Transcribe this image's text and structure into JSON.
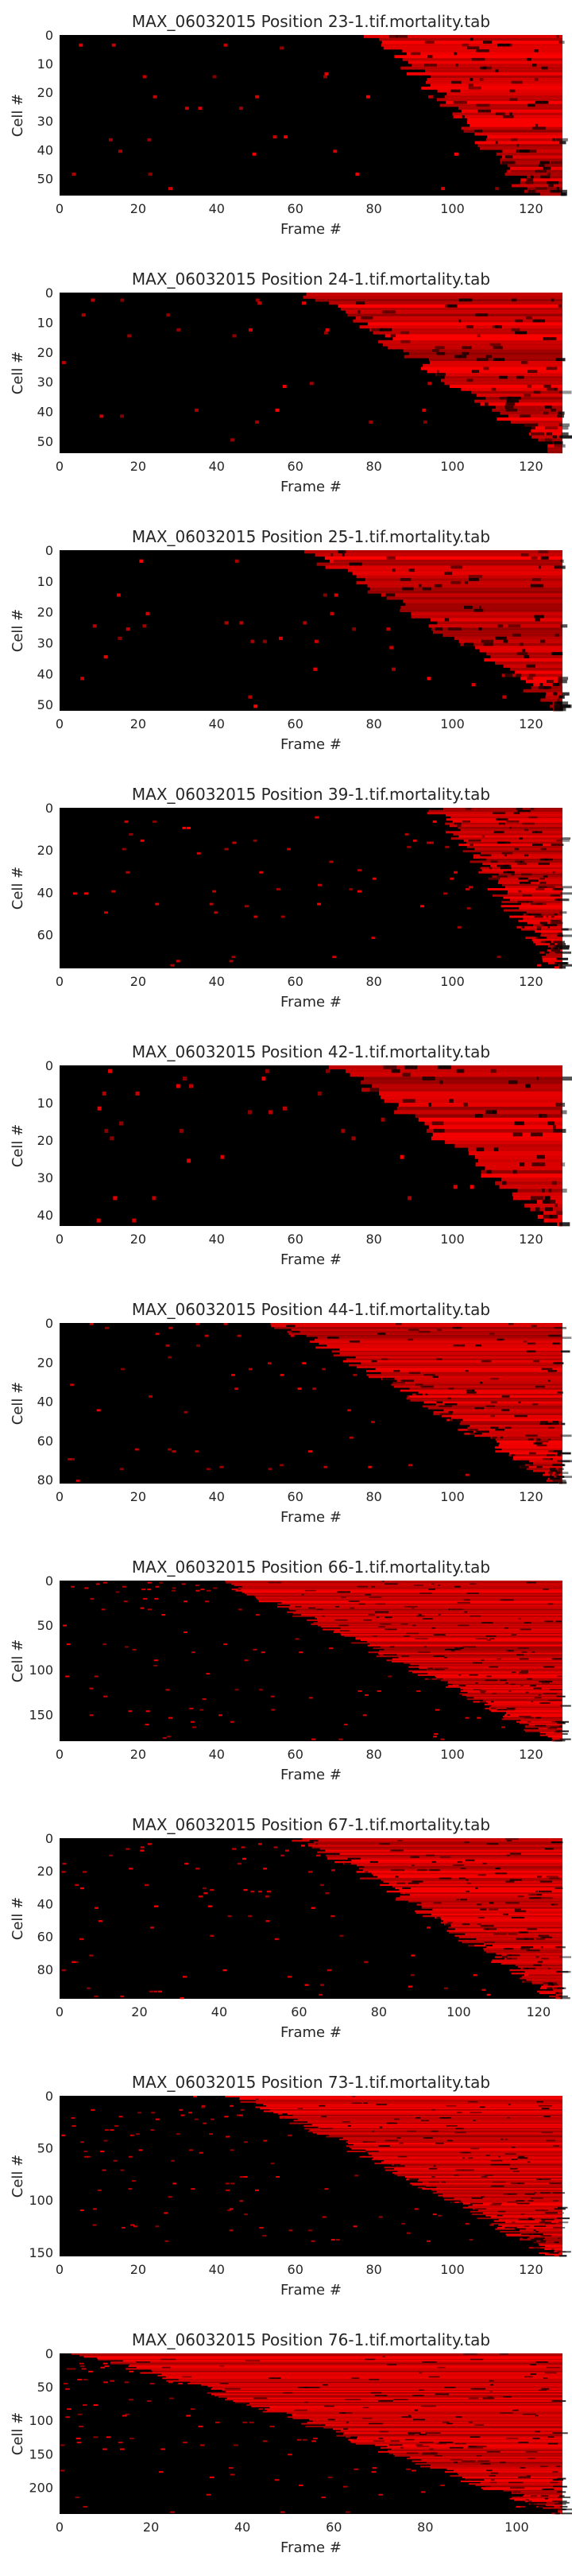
{
  "chart_data": [
    {
      "type": "heatmap",
      "title": "MAX_06032015 Position 23-1.tif.mortality.tab",
      "xlabel": "Frame #",
      "ylabel": "Cell #",
      "x_range": [
        0,
        128
      ],
      "y_range": [
        0,
        56
      ],
      "x_ticks": [
        0,
        20,
        40,
        60,
        80,
        100,
        120
      ],
      "y_ticks": [
        0,
        10,
        20,
        30,
        40,
        50
      ],
      "colormap": [
        "#000000",
        "#ff0000"
      ],
      "grid": false,
      "onset_frames": [
        80,
        120
      ]
    },
    {
      "type": "heatmap",
      "title": "MAX_06032015 Position 24-1.tif.mortality.tab",
      "xlabel": "Frame #",
      "ylabel": "Cell #",
      "x_range": [
        0,
        128
      ],
      "y_range": [
        0,
        54
      ],
      "x_ticks": [
        0,
        20,
        40,
        60,
        80,
        100,
        120
      ],
      "y_ticks": [
        0,
        10,
        20,
        30,
        40,
        50
      ],
      "colormap": [
        "#000000",
        "#ff0000"
      ],
      "grid": false,
      "onset_frames": [
        62,
        126
      ]
    },
    {
      "type": "heatmap",
      "title": "MAX_06032015 Position 25-1.tif.mortality.tab",
      "xlabel": "Frame #",
      "ylabel": "Cell #",
      "x_range": [
        0,
        128
      ],
      "y_range": [
        0,
        52
      ],
      "x_ticks": [
        0,
        20,
        40,
        60,
        80,
        100,
        120
      ],
      "y_ticks": [
        0,
        10,
        20,
        30,
        40,
        50
      ],
      "colormap": [
        "#000000",
        "#ff0000"
      ],
      "grid": false,
      "onset_frames": [
        61,
        128
      ]
    },
    {
      "type": "heatmap",
      "title": "MAX_06032015 Position 39-1.tif.mortality.tab",
      "xlabel": "Frame #",
      "ylabel": "Cell #",
      "x_range": [
        0,
        128
      ],
      "y_range": [
        0,
        76
      ],
      "x_ticks": [
        0,
        20,
        40,
        60,
        80,
        100,
        120
      ],
      "y_ticks": [
        0,
        20,
        40,
        60
      ],
      "colormap": [
        "#000000",
        "#ff0000"
      ],
      "grid": false,
      "onset_frames": [
        95,
        126
      ]
    },
    {
      "type": "heatmap",
      "title": "MAX_06032015 Position 42-1.tif.mortality.tab",
      "xlabel": "Frame #",
      "ylabel": "Cell #",
      "x_range": [
        0,
        128
      ],
      "y_range": [
        0,
        43
      ],
      "x_ticks": [
        0,
        20,
        40,
        60,
        80,
        100,
        120
      ],
      "y_ticks": [
        0,
        10,
        20,
        30,
        40
      ],
      "colormap": [
        "#000000",
        "#ff0000"
      ],
      "grid": false,
      "onset_frames": [
        70,
        126
      ]
    },
    {
      "type": "heatmap",
      "title": "MAX_06032015 Position 44-1.tif.mortality.tab",
      "xlabel": "Frame #",
      "ylabel": "Cell #",
      "x_range": [
        0,
        128
      ],
      "y_range": [
        0,
        82
      ],
      "x_ticks": [
        0,
        20,
        40,
        60,
        80,
        100,
        120
      ],
      "y_ticks": [
        0,
        20,
        40,
        60,
        80
      ],
      "colormap": [
        "#000000",
        "#ff0000"
      ],
      "grid": false,
      "onset_frames": [
        55,
        126
      ]
    },
    {
      "type": "heatmap",
      "title": "MAX_06032015 Position 66-1.tif.mortality.tab",
      "xlabel": "Frame #",
      "ylabel": "Cell #",
      "x_range": [
        0,
        128
      ],
      "y_range": [
        0,
        180
      ],
      "x_ticks": [
        0,
        20,
        40,
        60,
        80,
        100,
        120
      ],
      "y_ticks": [
        0,
        50,
        100,
        150
      ],
      "colormap": [
        "#000000",
        "#ff0000"
      ],
      "grid": false,
      "onset_frames": [
        40,
        126
      ]
    },
    {
      "type": "heatmap",
      "title": "MAX_06032015 Position 67-1.tif.mortality.tab",
      "xlabel": "Frame #",
      "ylabel": "Cell #",
      "x_range": [
        0,
        126
      ],
      "y_range": [
        0,
        98
      ],
      "x_ticks": [
        0,
        20,
        40,
        60,
        80,
        100,
        120
      ],
      "y_ticks": [
        0,
        20,
        40,
        60,
        80
      ],
      "colormap": [
        "#000000",
        "#ff0000"
      ],
      "grid": false,
      "onset_frames": [
        60,
        124
      ]
    },
    {
      "type": "heatmap",
      "title": "MAX_06032015 Position 73-1.tif.mortality.tab",
      "xlabel": "Frame #",
      "ylabel": "Cell #",
      "x_range": [
        0,
        128
      ],
      "y_range": [
        0,
        154
      ],
      "x_ticks": [
        0,
        20,
        40,
        60,
        80,
        100,
        120
      ],
      "y_ticks": [
        0,
        50,
        100,
        150
      ],
      "colormap": [
        "#000000",
        "#ff0000"
      ],
      "grid": false,
      "onset_frames": [
        45,
        126
      ]
    },
    {
      "type": "heatmap",
      "title": "MAX_06032015 Position 76-1.tif.mortality.tab",
      "xlabel": "Frame #",
      "ylabel": "Cell #",
      "x_range": [
        0,
        110
      ],
      "y_range": [
        0,
        240
      ],
      "x_ticks": [
        0,
        20,
        40,
        60,
        80,
        100
      ],
      "y_ticks": [
        0,
        50,
        100,
        150,
        200
      ],
      "colormap": [
        "#000000",
        "#ff0000"
      ],
      "grid": false,
      "onset_frames": [
        5,
        110
      ]
    }
  ]
}
